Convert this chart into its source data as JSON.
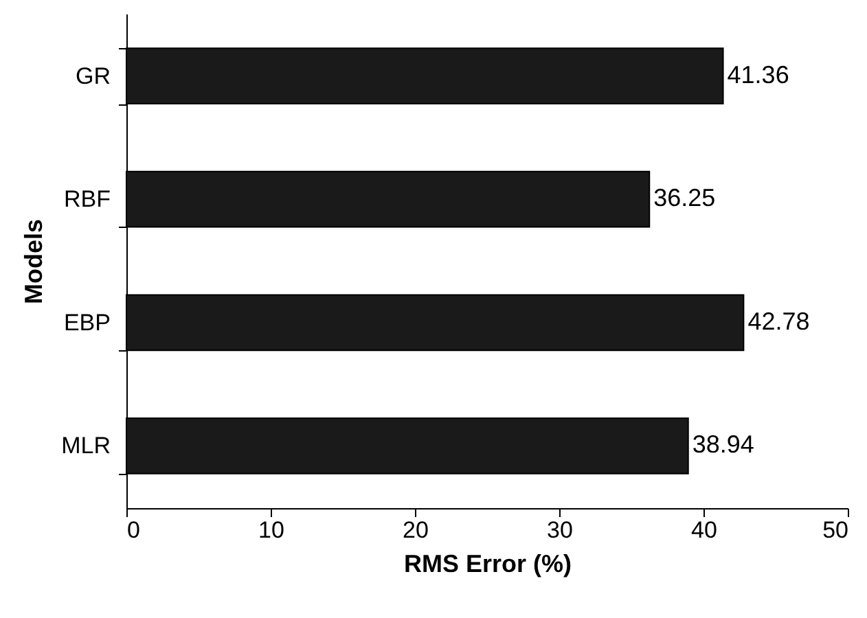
{
  "chart_data": {
    "type": "bar",
    "orientation": "horizontal",
    "xlabel": "RMS Error (%)",
    "ylabel": "Models",
    "categories": [
      "GR",
      "RBF",
      "EBP",
      "MLR"
    ],
    "values": [
      41.36,
      36.25,
      42.78,
      38.94
    ],
    "color": "#1a1a1a",
    "xlim": [
      0,
      50
    ],
    "xticks": [
      0,
      10,
      20,
      30,
      40,
      50
    ],
    "data_labels": true,
    "grid": false
  }
}
